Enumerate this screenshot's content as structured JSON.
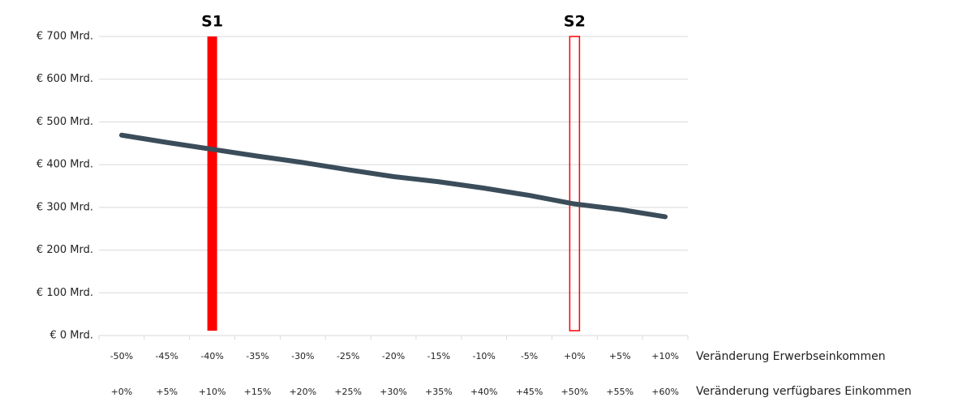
{
  "chart_data": {
    "type": "line",
    "categories": [
      "-50%",
      "-45%",
      "-40%",
      "-35%",
      "-30%",
      "-25%",
      "-20%",
      "-15%",
      "-10%",
      "-5%",
      "+0%",
      "+5%",
      "+10%"
    ],
    "categories2": [
      "+0%",
      "+5%",
      "+10%",
      "+15%",
      "+20%",
      "+25%",
      "+30%",
      "+35%",
      "+40%",
      "+45%",
      "+50%",
      "+55%",
      "+60%"
    ],
    "x_label": "Veränderung Erwerbseinkommen",
    "x2_label": "Veränderung verfügbares Einkommen",
    "series": [
      {
        "color": "#3b4d5a",
        "values": [
          469,
          452,
          436,
          420,
          405,
          388,
          372,
          360,
          345,
          328,
          308,
          295,
          278
        ]
      }
    ],
    "markers": [
      {
        "label": "S1",
        "category": "-40%",
        "value": 700,
        "color": "#ff0000",
        "filled": true
      },
      {
        "label": "S2",
        "category": "+0%",
        "value": 700,
        "color": "#ff0000",
        "filled": false
      }
    ],
    "ylim": [
      0,
      700
    ],
    "yticks": [
      {
        "value": 0,
        "label": "€ 0 Mrd."
      },
      {
        "value": 100,
        "label": "€ 100 Mrd."
      },
      {
        "value": 200,
        "label": "€ 200 Mrd."
      },
      {
        "value": 300,
        "label": "€ 300 Mrd."
      },
      {
        "value": 400,
        "label": "€ 400 Mrd."
      },
      {
        "value": 500,
        "label": "€ 500 Mrd."
      },
      {
        "value": 600,
        "label": "€ 600 Mrd."
      },
      {
        "value": 700,
        "label": "€ 700 Mrd."
      }
    ],
    "grid": true
  }
}
